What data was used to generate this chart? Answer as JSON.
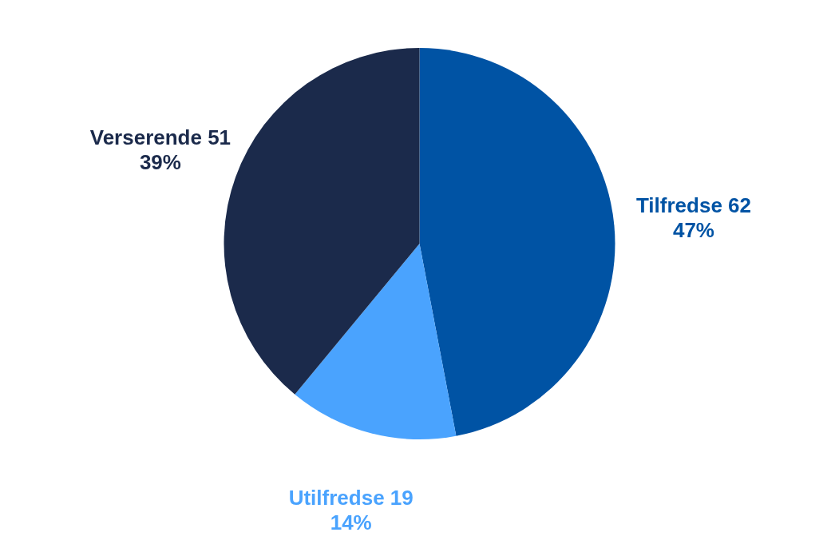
{
  "chart_data": {
    "type": "pie",
    "categories": [
      "Tilfredse 62",
      "Utilfredse 19",
      "Verserende 51"
    ],
    "values": [
      47,
      14,
      39
    ],
    "colors": [
      "#0053a4",
      "#4aa3fe",
      "#1b2a4b"
    ],
    "value_labels": [
      "47%",
      "14%",
      "39%"
    ]
  }
}
